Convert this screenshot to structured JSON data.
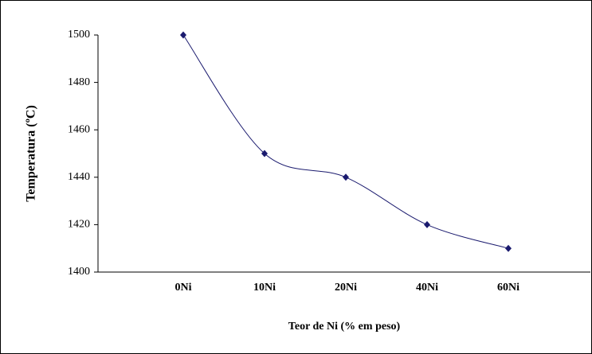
{
  "chart_data": {
    "type": "line",
    "x_label": "Teor de Ni (% em peso)",
    "y_label": "Temperatura (ºC)",
    "categories": [
      "0Ni",
      "10Ni",
      "20Ni",
      "40Ni",
      "60Ni"
    ],
    "series": [
      {
        "name": "Temperatura",
        "color": "#1a1a6e",
        "values": [
          1500,
          1450,
          1440,
          1420,
          1410
        ]
      }
    ],
    "ylim": [
      1400,
      1500
    ],
    "yticks": [
      1400,
      1420,
      1440,
      1460,
      1480,
      1500
    ]
  }
}
